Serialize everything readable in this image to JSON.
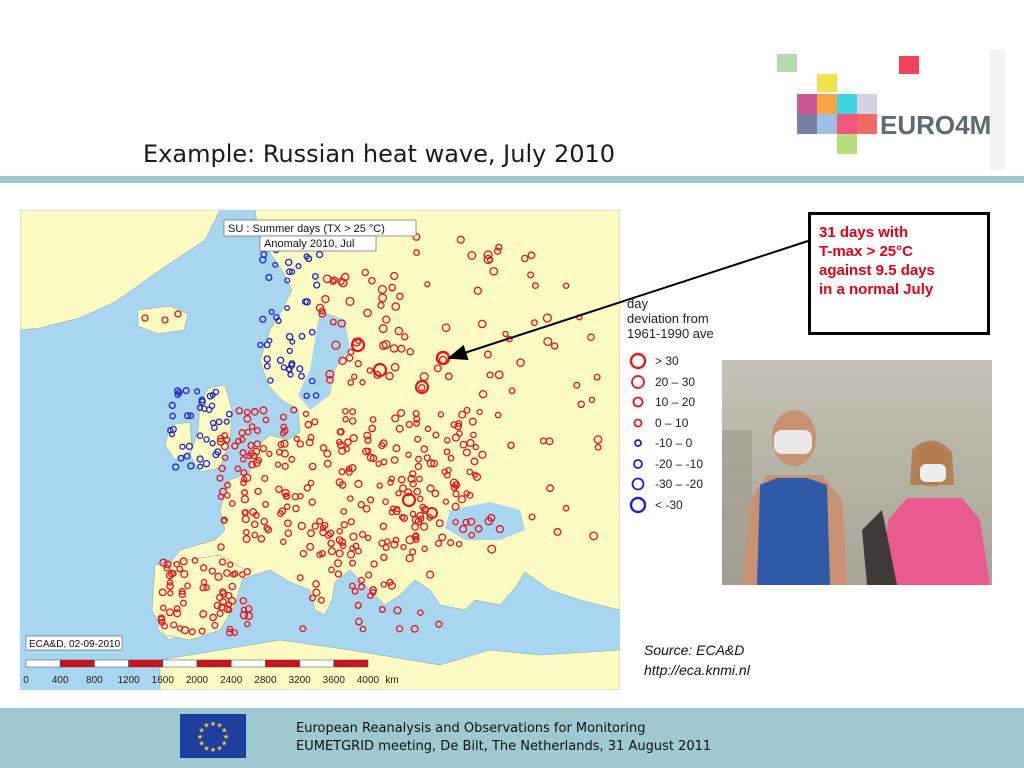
{
  "slide": {
    "title": "Example: Russian heat wave, July 2010"
  },
  "logo": {
    "text": "EURO4M"
  },
  "map": {
    "header_line1": "SU : Summer days (TX > 25 °C)",
    "header_line2": "Anomaly 2010, Jul",
    "credit": "ECA&D, 02-09-2010",
    "scale_labels": [
      "0",
      "400",
      "800",
      "1200",
      "1600",
      "2000",
      "2400",
      "2800",
      "3200",
      "3600",
      "4000",
      "km"
    ]
  },
  "legend": {
    "title_lines": [
      "day",
      "deviation from",
      "1961-1990 ave"
    ],
    "items": [
      {
        "label": "> 30",
        "color": "#e8141b"
      },
      {
        "label": "20 – 30",
        "color": "#e8141b"
      },
      {
        "label": "10 – 20",
        "color": "#e8141b"
      },
      {
        "label": "0 – 10",
        "color": "#e8141b"
      },
      {
        "label": "-10 – 0",
        "color": "#1d22c9"
      },
      {
        "label": "-20 – -10",
        "color": "#1d22c9"
      },
      {
        "label": "-30 – -20",
        "color": "#1d22c9"
      },
      {
        "label": "< -30",
        "color": "#1d22c9"
      }
    ]
  },
  "callout": {
    "lines": [
      "31 days with",
      "T-max > 25°C",
      "against 9.5 days",
      "in a normal July"
    ]
  },
  "source": {
    "line1": "Source: ECA&D",
    "line2": "http://eca.knmi.nl"
  },
  "footer": {
    "line1": "European Reanalysis and Observations for Monitoring",
    "line2": "EUMETGRID meeting, De Bilt, The Netherlands, 31 August 2011"
  }
}
